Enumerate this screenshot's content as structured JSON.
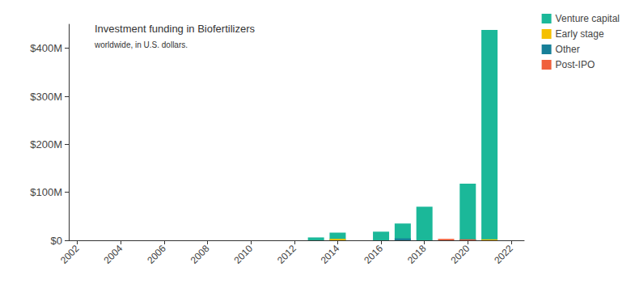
{
  "chart_data": {
    "type": "bar",
    "title": "Investment funding in Biofertilizers",
    "subtitle": "worldwide, in U.S. dollars.",
    "x": [
      2013,
      2014,
      2016,
      2017,
      2018,
      2019,
      2020,
      2021
    ],
    "series": [
      {
        "name": "Venture capital",
        "color": "#1bb899",
        "values": [
          6000000,
          16000000,
          18000000,
          35000000,
          70000000,
          null,
          118000000,
          438000000
        ]
      },
      {
        "name": "Early stage",
        "color": "#f5c000",
        "values": [
          null,
          3000000,
          null,
          null,
          null,
          null,
          null,
          2000000
        ]
      },
      {
        "name": "Other",
        "color": "#177f98",
        "values": [
          null,
          null,
          null,
          4000000,
          null,
          null,
          2000000,
          null
        ]
      },
      {
        "name": "Post-IPO",
        "color": "#f0603c",
        "values": [
          null,
          null,
          null,
          null,
          null,
          3000000,
          2000000,
          null
        ]
      }
    ],
    "stacked": true,
    "xlim": [
      2001.6,
      2022.6
    ],
    "xticks": [
      2002,
      2004,
      2006,
      2008,
      2010,
      2012,
      2014,
      2016,
      2018,
      2020,
      2022
    ],
    "ylim": [
      0,
      450000000
    ],
    "yticks": [
      {
        "value": 0,
        "label": "$0"
      },
      {
        "value": 100000000,
        "label": "$100M"
      },
      {
        "value": 200000000,
        "label": "$200M"
      },
      {
        "value": 300000000,
        "label": "$300M"
      },
      {
        "value": 400000000,
        "label": "$400M"
      }
    ],
    "grid": false,
    "legend": "top-right"
  }
}
